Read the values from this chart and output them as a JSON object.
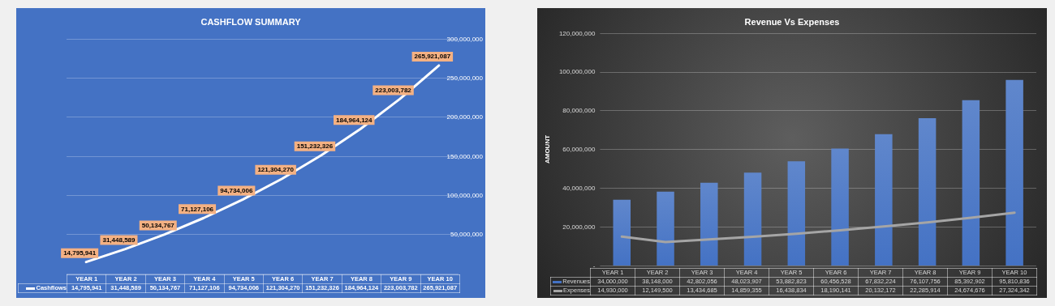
{
  "chart_data": [
    {
      "type": "line",
      "title": "CASHFLOW SUMMARY",
      "categories": [
        "YEAR 1",
        "YEAR 2",
        "YEAR 3",
        "YEAR 4",
        "YEAR 5",
        "YEAR 6",
        "YEAR 7",
        "YEAR 8",
        "YEAR 9",
        "YEAR 10"
      ],
      "series": [
        {
          "name": "Cashflows",
          "color": "#ffffff",
          "values": [
            14795941,
            31448589,
            50134767,
            71127106,
            94734006,
            121304270,
            151232326,
            184964124,
            223003782,
            265921087
          ],
          "value_labels": [
            "14,795,941",
            "31,448,589",
            "50,134,767",
            "71,127,106",
            "94,734,006",
            "121,304,270",
            "151,232,326",
            "184,964,124",
            "223,003,782",
            "265,921,087"
          ]
        }
      ],
      "ylim": [
        0,
        300000000
      ],
      "yticks": [
        {
          "value": 0,
          "label": null
        },
        {
          "value": 50000000,
          "label": "50,000,000"
        },
        {
          "value": 100000000,
          "label": "100,000,000"
        },
        {
          "value": 150000000,
          "label": "150,000,000"
        },
        {
          "value": 200000000,
          "label": "200,000,000"
        },
        {
          "value": 250000000,
          "label": "250,000,000"
        },
        {
          "value": 300000000,
          "label": "300,000,000"
        }
      ],
      "grid": "y",
      "legend": "bottom",
      "marker": "none"
    },
    {
      "type": "bar",
      "title": "Revenue Vs Expenses",
      "ylabel": "AMOUNT",
      "categories": [
        "YEAR 1",
        "YEAR 2",
        "YEAR 3",
        "YEAR 4",
        "YEAR 5",
        "YEAR 6",
        "YEAR 7",
        "YEAR 8",
        "YEAR 9",
        "YEAR 10"
      ],
      "series": [
        {
          "name": "Revenues",
          "color": "#4472c4",
          "values": [
            34000000,
            38148000,
            42802056,
            48023907,
            53882823,
            60456528,
            67832224,
            76107756,
            85392902,
            95810836
          ],
          "value_labels": [
            "34,000,000",
            "38,148,000",
            "42,802,056",
            "48,023,907",
            "53,882,823",
            "60,456,528",
            "67,832,224",
            "76,107,756",
            "85,392,902",
            "95,810,836"
          ]
        },
        {
          "name": "Expenses",
          "type": "line",
          "color": "#a5a5a5",
          "values": [
            14930000,
            12149500,
            13434685,
            14859355,
            16438834,
            18190141,
            20132172,
            22285914,
            24674676,
            27324342
          ],
          "value_labels": [
            "14,930,000",
            "12,149,500",
            "13,434,685",
            "14,859,355",
            "16,438,834",
            "18,190,141",
            "20,132,172",
            "22,285,914",
            "24,674,676",
            "27,324,342"
          ]
        }
      ],
      "ylim": [
        0,
        120000000
      ],
      "yticks": [
        {
          "value": 0,
          "label": "-"
        },
        {
          "value": 20000000,
          "label": "20,000,000"
        },
        {
          "value": 40000000,
          "label": "40,000,000"
        },
        {
          "value": 60000000,
          "label": "60,000,000"
        },
        {
          "value": 80000000,
          "label": "80,000,000"
        },
        {
          "value": 100000000,
          "label": "100,000,000"
        },
        {
          "value": 120000000,
          "label": "120,000,000"
        }
      ],
      "grid": "y",
      "legend": "bottom",
      "marker": "none"
    }
  ]
}
